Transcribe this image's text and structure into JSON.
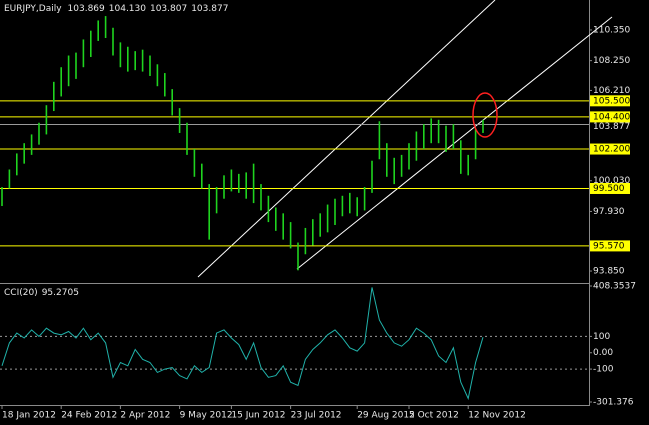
{
  "chart_data": {
    "type": "hilo",
    "symbol": "EURJPY,Daily",
    "quote": [
      {
        "value": 103.869,
        "label": "103.869"
      },
      {
        "value": 104.13,
        "label": "104.130"
      },
      {
        "value": 103.807,
        "label": "103.807"
      },
      {
        "value": 103.877,
        "label": "103.877"
      }
    ],
    "color": "#1fd41f",
    "categories": [
      "18 Jan 2012",
      null,
      null,
      null,
      null,
      null,
      null,
      null,
      "24 Feb 2012",
      null,
      null,
      null,
      null,
      null,
      null,
      null,
      "2 Apr 2012",
      null,
      null,
      null,
      null,
      null,
      null,
      null,
      "9 May 2012",
      null,
      null,
      null,
      null,
      null,
      null,
      "15 Jun 2012",
      null,
      null,
      null,
      null,
      null,
      null,
      null,
      "23 Jul 2012",
      null,
      null,
      null,
      null,
      null,
      null,
      null,
      null,
      "29 Aug 2012",
      null,
      null,
      null,
      null,
      null,
      null,
      "5 Oct 2012",
      null,
      null,
      null,
      null,
      null,
      null,
      null,
      "12 Nov 2012",
      null,
      null
    ],
    "high": [
      99.6,
      100.8,
      101.9,
      102.6,
      103.2,
      104.0,
      105.2,
      106.8,
      107.8,
      108.6,
      108.8,
      109.7,
      110.3,
      111.0,
      111.3,
      110.5,
      109.5,
      109.2,
      108.9,
      109.0,
      108.6,
      108.0,
      107.4,
      106.3,
      105.0,
      104.0,
      102.2,
      101.2,
      99.8,
      99.6,
      100.4,
      100.8,
      100.5,
      100.6,
      101.2,
      99.8,
      99.0,
      98.2,
      97.8,
      97.2,
      95.8,
      96.8,
      97.4,
      97.8,
      98.4,
      98.8,
      99.0,
      99.2,
      98.9,
      99.6,
      101.4,
      104.1,
      102.6,
      101.6,
      101.8,
      102.6,
      103.4,
      103.9,
      104.3,
      104.2,
      103.8,
      103.9,
      102.8,
      101.8,
      103.6,
      104.2
    ],
    "low": [
      98.3,
      99.5,
      100.4,
      101.2,
      101.8,
      102.5,
      103.2,
      104.8,
      105.8,
      106.5,
      107.0,
      107.8,
      108.5,
      109.6,
      109.8,
      108.6,
      107.8,
      107.5,
      107.6,
      107.5,
      107.2,
      106.5,
      105.8,
      104.5,
      103.3,
      101.8,
      100.3,
      99.5,
      96.0,
      97.8,
      98.8,
      99.3,
      99.2,
      98.8,
      98.5,
      98.0,
      97.2,
      96.6,
      96.0,
      95.4,
      93.9,
      95.0,
      95.6,
      96.2,
      96.5,
      97.0,
      97.6,
      97.8,
      97.6,
      98.0,
      99.2,
      101.5,
      100.3,
      99.8,
      100.3,
      100.8,
      101.4,
      102.2,
      102.6,
      102.6,
      102.0,
      102.2,
      100.5,
      100.4,
      101.5,
      103.3
    ],
    "ylim": [
      93.1,
      112.4
    ],
    "yticks": [
      {
        "value": 110.35,
        "label": "110.350"
      },
      {
        "value": 108.25,
        "label": "108.250"
      },
      {
        "value": 106.21,
        "label": "106.210"
      },
      {
        "value": 100.03,
        "label": "100.030"
      },
      {
        "value": 97.93,
        "label": "97.930"
      },
      {
        "value": 93.85,
        "label": "93.850"
      }
    ],
    "hlines": [
      {
        "value": 105.5,
        "label": "105.500"
      },
      {
        "value": 104.4,
        "label": "104.400"
      },
      {
        "value": 102.2,
        "label": "102.200"
      },
      {
        "value": 99.5,
        "label": "99.500"
      },
      {
        "value": 95.57,
        "label": "95.570"
      }
    ],
    "hline_color": "#ffff00",
    "indicator": {
      "name": "CCI(20)",
      "value": 95.2705,
      "color": "#20b2aa",
      "values": [
        -80,
        60,
        120,
        90,
        140,
        100,
        150,
        120,
        110,
        130,
        90,
        150,
        80,
        120,
        60,
        -150,
        -60,
        -80,
        20,
        -40,
        -60,
        -120,
        -100,
        -90,
        -140,
        -160,
        -80,
        -120,
        -90,
        120,
        140,
        90,
        50,
        -40,
        60,
        -90,
        -150,
        -140,
        -80,
        -180,
        -200,
        -40,
        20,
        60,
        110,
        140,
        90,
        30,
        10,
        60,
        400,
        200,
        120,
        60,
        40,
        80,
        150,
        120,
        80,
        -20,
        -60,
        30,
        -180,
        -280,
        -60,
        95.2705
      ],
      "ylim": [
        -301.376,
        408.3537
      ],
      "yticks": [
        408.3537,
        100,
        {
          "value": 0,
          "label": "0.00"
        },
        -100,
        -301.376
      ],
      "levels": [
        100,
        -100
      ]
    }
  }
}
